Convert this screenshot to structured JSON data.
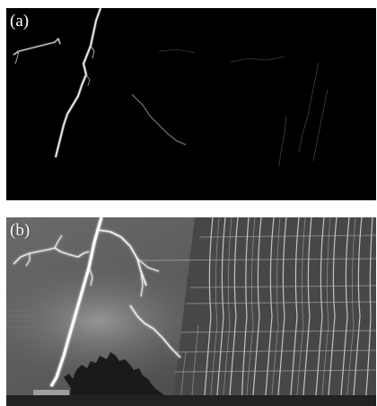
{
  "figure": {
    "panels": [
      {
        "id": "a",
        "label": "(a)"
      },
      {
        "id": "b",
        "label": "(b)"
      }
    ]
  }
}
